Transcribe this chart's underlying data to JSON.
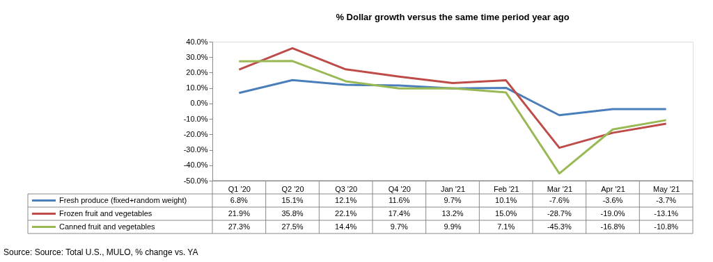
{
  "chart_data": {
    "type": "line",
    "title": "% Dollar growth versus the same time period year ago",
    "categories": [
      "Q1 '20",
      "Q2 '20",
      "Q3 '20",
      "Q4 '20",
      "Jan '21",
      "Feb '21",
      "Mar '21",
      "Apr '21",
      "May '21"
    ],
    "series": [
      {
        "name": "Fresh produce (fixed+random weight)",
        "color": "#4a7ebb",
        "values": [
          6.8,
          15.1,
          12.1,
          11.6,
          9.7,
          10.1,
          -7.6,
          -3.6,
          -3.7
        ],
        "value_labels": [
          "6.8%",
          "15.1%",
          "12.1%",
          "11.6%",
          "9.7%",
          "10.1%",
          "-7.6%",
          "-3.6%",
          "-3.7%"
        ]
      },
      {
        "name": "Frozen fruit and vegetables",
        "color": "#be4b48",
        "values": [
          21.9,
          35.8,
          22.1,
          17.4,
          13.2,
          15.0,
          -28.7,
          -19.0,
          -13.1
        ],
        "value_labels": [
          "21.9%",
          "35.8%",
          "22.1%",
          "17.4%",
          "13.2%",
          "15.0%",
          "-28.7%",
          "-19.0%",
          "-13.1%"
        ]
      },
      {
        "name": "Canned fruit and vegetables",
        "color": "#98b954",
        "values": [
          27.3,
          27.5,
          14.4,
          9.7,
          9.9,
          7.1,
          -45.3,
          -16.8,
          -10.8
        ],
        "value_labels": [
          "27.3%",
          "27.5%",
          "14.4%",
          "9.7%",
          "9.9%",
          "7.1%",
          "-45.3%",
          "-16.8%",
          "-10.8%"
        ]
      }
    ],
    "ylim": [
      -50,
      40
    ],
    "yticks": [
      {
        "value": -50,
        "label": "-50.0%"
      },
      {
        "value": -40,
        "label": "-40.0%"
      },
      {
        "value": -30,
        "label": "-30.0%"
      },
      {
        "value": -20,
        "label": "-20.0%"
      },
      {
        "value": -10,
        "label": "-10.0%"
      },
      {
        "value": 0,
        "label": "0.0%"
      },
      {
        "value": 10,
        "label": "10.0%"
      },
      {
        "value": 20,
        "label": "20.0%"
      },
      {
        "value": 30,
        "label": "30.0%"
      },
      {
        "value": 40,
        "label": "40.0%"
      }
    ],
    "legend": "bottom",
    "grid": false,
    "annotations": [
      "Source: Source: Total U.S., MULO, % change vs. YA"
    ]
  }
}
